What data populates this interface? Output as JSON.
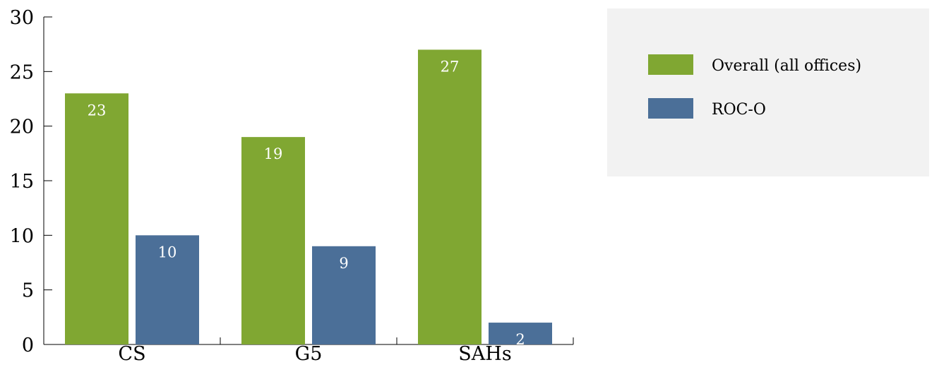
{
  "chart_data": {
    "type": "bar",
    "title": "",
    "xlabel": "",
    "ylabel": "",
    "categories": [
      "CS",
      "G5",
      "SAHs"
    ],
    "series": [
      {
        "name": "Overall (all offices)",
        "values": [
          23,
          19,
          27
        ],
        "color": "#80a732"
      },
      {
        "name": "ROC-O",
        "values": [
          10,
          9,
          2
        ],
        "color": "#4b6f98"
      }
    ],
    "ylim": [
      0,
      30
    ],
    "yticks": [
      0,
      5,
      10,
      15,
      20,
      25,
      30
    ],
    "grid": false,
    "legend_position": "top-right",
    "data_labels": true
  },
  "colors": {
    "legend_background": "#f2f2f2",
    "axis": "#000000",
    "data_label_text": "#ffffff"
  }
}
